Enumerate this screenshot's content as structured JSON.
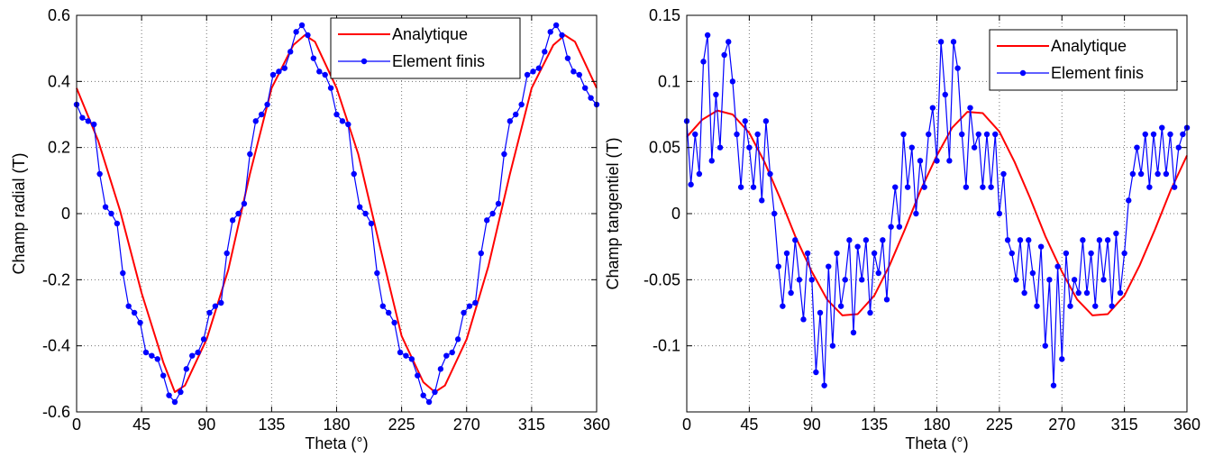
{
  "chart_data": [
    {
      "type": "line",
      "xlabel": "Theta (°)",
      "ylabel": "Champ radial (T)",
      "xlim": [
        0,
        360
      ],
      "ylim": [
        -0.6,
        0.6
      ],
      "xticks": [
        0,
        45,
        90,
        135,
        180,
        225,
        270,
        315,
        360
      ],
      "yticks": [
        0.6,
        0.4,
        0.2,
        0,
        -0.2,
        -0.4,
        -0.6
      ],
      "ytick_labels": [
        "0.6",
        "0.4",
        "0.2",
        "0",
        "-0.2",
        "-0.4",
        "-0.6"
      ],
      "grid": true,
      "legend_position": "top-right",
      "series": [
        {
          "name": "Analytique",
          "color": "#ff0000",
          "marker": "none",
          "x": [
            0,
            15,
            30,
            45,
            60,
            68,
            75,
            90,
            105,
            120,
            135,
            150,
            158,
            165,
            180,
            195,
            210,
            225,
            240,
            248,
            255,
            270,
            285,
            300,
            315,
            330,
            338,
            345,
            360
          ],
          "y": [
            0.38,
            0.22,
            0.01,
            -0.24,
            -0.45,
            -0.54,
            -0.52,
            -0.38,
            -0.17,
            0.12,
            0.38,
            0.51,
            0.54,
            0.52,
            0.38,
            0.18,
            -0.1,
            -0.37,
            -0.51,
            -0.54,
            -0.52,
            -0.38,
            -0.16,
            0.12,
            0.38,
            0.51,
            0.54,
            0.52,
            0.38
          ]
        },
        {
          "name": "Element finis",
          "color": "#0000ff",
          "marker": "dot",
          "x": [
            0,
            4,
            8,
            12,
            16,
            20,
            24,
            28,
            32,
            36,
            40,
            44,
            48,
            52,
            56,
            60,
            64,
            68,
            72,
            76,
            80,
            84,
            88,
            92,
            96,
            100,
            104,
            108,
            112,
            116,
            120,
            124,
            128,
            132,
            136,
            140,
            144,
            148,
            152,
            156,
            160,
            164,
            168,
            172,
            176,
            180,
            184,
            188,
            192,
            196,
            200,
            204,
            208,
            212,
            216,
            220,
            224,
            228,
            232,
            236,
            240,
            244,
            248,
            252,
            256,
            260,
            264,
            268,
            272,
            276,
            280,
            284,
            288,
            292,
            296,
            300,
            304,
            308,
            312,
            316,
            320,
            324,
            328,
            332,
            336,
            340,
            344,
            348,
            352,
            356,
            360
          ],
          "y": [
            0.33,
            0.29,
            0.28,
            0.27,
            0.12,
            0.02,
            0.0,
            -0.03,
            -0.18,
            -0.28,
            -0.3,
            -0.33,
            -0.42,
            -0.43,
            -0.44,
            -0.49,
            -0.55,
            -0.57,
            -0.54,
            -0.47,
            -0.43,
            -0.42,
            -0.38,
            -0.3,
            -0.28,
            -0.27,
            -0.12,
            -0.02,
            0.0,
            0.03,
            0.18,
            0.28,
            0.3,
            0.33,
            0.42,
            0.43,
            0.44,
            0.49,
            0.55,
            0.57,
            0.54,
            0.47,
            0.43,
            0.42,
            0.38,
            0.3,
            0.28,
            0.27,
            0.12,
            0.02,
            0.0,
            -0.03,
            -0.18,
            -0.28,
            -0.3,
            -0.33,
            -0.42,
            -0.43,
            -0.44,
            -0.49,
            -0.55,
            -0.57,
            -0.54,
            -0.47,
            -0.43,
            -0.42,
            -0.38,
            -0.3,
            -0.28,
            -0.27,
            -0.12,
            -0.02,
            0.0,
            0.03,
            0.18,
            0.28,
            0.3,
            0.33,
            0.42,
            0.43,
            0.44,
            0.49,
            0.55,
            0.57,
            0.54,
            0.47,
            0.43,
            0.42,
            0.38,
            0.35,
            0.33
          ]
        }
      ]
    },
    {
      "type": "line",
      "xlabel": "Theta (°)",
      "ylabel": "Champ tangentiel (T)",
      "xlim": [
        0,
        360
      ],
      "ylim": [
        -0.15,
        0.15
      ],
      "xticks": [
        0,
        45,
        90,
        135,
        180,
        225,
        270,
        315,
        360
      ],
      "yticks": [
        0.15,
        0.1,
        0.05,
        0,
        -0.05,
        -0.1
      ],
      "ytick_labels": [
        "0.15",
        "0.1",
        "0.05",
        "0",
        "-0.05",
        "-0.1"
      ],
      "grid": true,
      "legend_position": "top-right",
      "series": [
        {
          "name": "Analytique",
          "color": "#ff0000",
          "marker": "none",
          "x": [
            0,
            11,
            22,
            33,
            45,
            56,
            67,
            78,
            90,
            101,
            112,
            123,
            135,
            146,
            157,
            168,
            180,
            191,
            202,
            213,
            225,
            236,
            247,
            258,
            270,
            281,
            292,
            303,
            315,
            326,
            337,
            348,
            360
          ],
          "y": [
            0.058,
            0.071,
            0.078,
            0.075,
            0.061,
            0.039,
            0.012,
            -0.017,
            -0.044,
            -0.065,
            -0.077,
            -0.076,
            -0.062,
            -0.039,
            -0.012,
            0.017,
            0.044,
            0.065,
            0.077,
            0.076,
            0.062,
            0.039,
            0.012,
            -0.017,
            -0.044,
            -0.065,
            -0.077,
            -0.076,
            -0.062,
            -0.039,
            -0.012,
            0.017,
            0.044
          ]
        },
        {
          "name": "Element finis",
          "color": "#0000ff",
          "marker": "dot",
          "x": [
            0,
            3,
            6,
            9,
            12,
            15,
            18,
            21,
            24,
            27,
            30,
            33,
            36,
            39,
            42,
            45,
            48,
            51,
            54,
            57,
            60,
            63,
            66,
            69,
            72,
            75,
            78,
            81,
            84,
            87,
            90,
            93,
            96,
            99,
            102,
            105,
            108,
            111,
            114,
            117,
            120,
            123,
            126,
            129,
            132,
            135,
            138,
            141,
            144,
            147,
            150,
            153,
            156,
            159,
            162,
            165,
            168,
            171,
            174,
            177,
            180,
            183,
            186,
            189,
            192,
            195,
            198,
            201,
            204,
            207,
            210,
            213,
            216,
            219,
            222,
            225,
            228,
            231,
            234,
            237,
            240,
            243,
            246,
            249,
            252,
            255,
            258,
            261,
            264,
            267,
            270,
            273,
            276,
            279,
            282,
            285,
            288,
            291,
            294,
            297,
            300,
            303,
            306,
            309,
            312,
            315,
            318,
            321,
            324,
            327,
            330,
            333,
            336,
            339,
            342,
            345,
            348,
            351,
            354,
            357,
            360
          ],
          "y": [
            0.07,
            0.022,
            0.06,
            0.03,
            0.115,
            0.135,
            0.04,
            0.09,
            0.05,
            0.12,
            0.13,
            0.1,
            0.06,
            0.02,
            0.07,
            0.05,
            0.02,
            0.06,
            0.01,
            0.07,
            0.03,
            0.0,
            -0.04,
            -0.07,
            -0.03,
            -0.06,
            -0.02,
            -0.05,
            -0.08,
            -0.03,
            -0.05,
            -0.12,
            -0.075,
            -0.13,
            -0.04,
            -0.1,
            -0.03,
            -0.07,
            -0.05,
            -0.02,
            -0.09,
            -0.025,
            -0.05,
            -0.02,
            -0.075,
            -0.03,
            -0.045,
            -0.02,
            -0.065,
            -0.01,
            0.02,
            -0.01,
            0.06,
            0.02,
            0.05,
            0.0,
            0.04,
            0.02,
            0.06,
            0.08,
            0.04,
            0.13,
            0.09,
            0.04,
            0.13,
            0.11,
            0.06,
            0.02,
            0.08,
            0.05,
            0.06,
            0.02,
            0.06,
            0.02,
            0.06,
            0.0,
            0.03,
            -0.02,
            -0.03,
            -0.05,
            -0.02,
            -0.06,
            -0.02,
            -0.045,
            -0.07,
            -0.025,
            -0.1,
            -0.05,
            -0.13,
            -0.04,
            -0.11,
            -0.03,
            -0.07,
            -0.05,
            -0.06,
            -0.02,
            -0.06,
            -0.03,
            -0.07,
            -0.02,
            -0.05,
            -0.02,
            -0.07,
            -0.015,
            -0.06,
            -0.03,
            0.01,
            0.03,
            0.05,
            0.03,
            0.06,
            0.02,
            0.06,
            0.03,
            0.065,
            0.03,
            0.06,
            0.02,
            0.05,
            0.06,
            0.065
          ]
        }
      ]
    }
  ]
}
